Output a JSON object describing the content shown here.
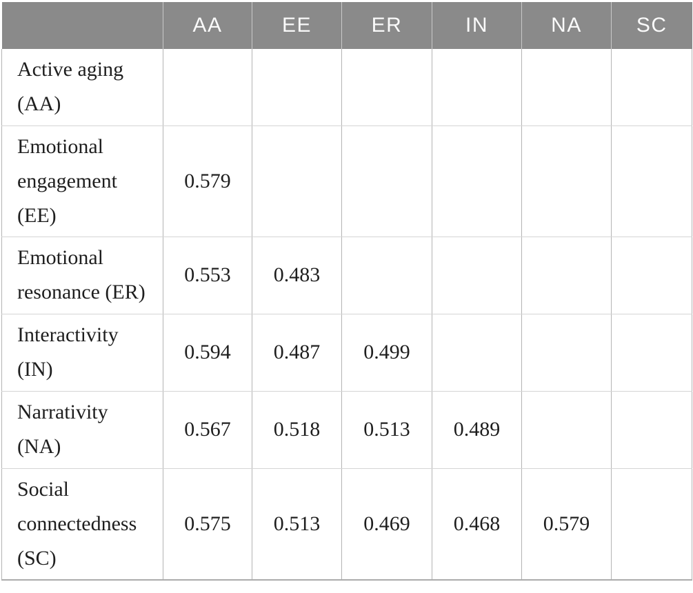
{
  "table": {
    "corner_label": "",
    "columns": [
      "AA",
      "EE",
      "ER",
      "IN",
      "NA",
      "SC"
    ],
    "rows": [
      {
        "label": "Active aging (AA)",
        "values": [
          "",
          "",
          "",
          "",
          "",
          ""
        ]
      },
      {
        "label": "Emotional engagement (EE)",
        "values": [
          "0.579",
          "",
          "",
          "",
          "",
          ""
        ]
      },
      {
        "label": "Emotional resonance (ER)",
        "values": [
          "0.553",
          "0.483",
          "",
          "",
          "",
          ""
        ]
      },
      {
        "label": "Interactivity (IN)",
        "values": [
          "0.594",
          "0.487",
          "0.499",
          "",
          "",
          ""
        ]
      },
      {
        "label": "Narrativity (NA)",
        "values": [
          "0.567",
          "0.518",
          "0.513",
          "0.489",
          "",
          ""
        ]
      },
      {
        "label": "Social connectedness (SC)",
        "values": [
          "0.575",
          "0.513",
          "0.469",
          "0.468",
          "0.579",
          ""
        ]
      }
    ],
    "colors": {
      "header_bg": "#8a8a8a",
      "header_text": "#fafafa",
      "body_text": "#1e1e1e",
      "grid_vertical": "#b3b3b3",
      "grid_horizontal": "#d4d4d4",
      "bottom_rule": "#ababab"
    }
  }
}
